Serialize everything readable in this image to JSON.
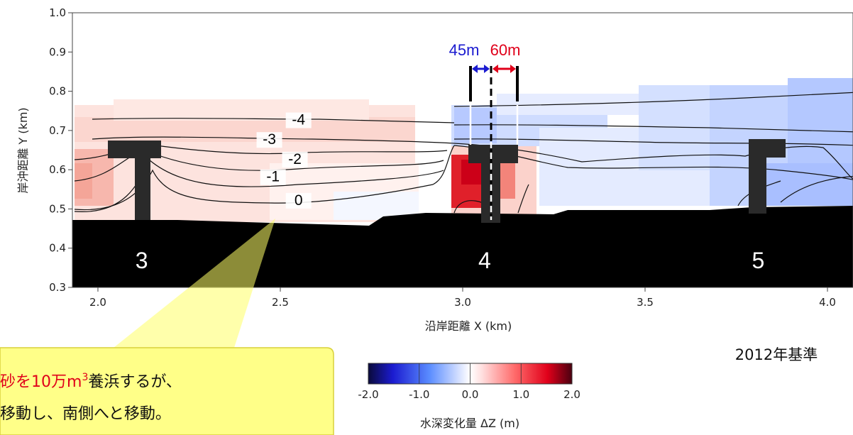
{
  "chart_data": {
    "type": "heatmap",
    "xlabel": "沿岸距離 X (km)",
    "ylabel": "岸沖距離 Y (km)",
    "xlim": [
      1.93,
      4.07
    ],
    "ylim": [
      0.3,
      1.0
    ],
    "x_ticks": [
      "2.0",
      "2.5",
      "3.0",
      "3.5",
      "4.0"
    ],
    "y_ticks": [
      "1.0",
      "0.9",
      "0.8",
      "0.7",
      "0.6",
      "0.5",
      "0.4",
      "0.3"
    ],
    "colorbar": {
      "label": "水深変化量 ΔZ (m)",
      "min": -2.0,
      "max": 2.0,
      "ticks": [
        "-2.0",
        "-1.0",
        "0.0",
        "1.0",
        "2.0"
      ]
    },
    "contours": [
      {
        "label": "0",
        "x": 2.55,
        "y": 0.51
      },
      {
        "label": "-1",
        "x": 2.48,
        "y": 0.57
      },
      {
        "label": "-2",
        "x": 2.54,
        "y": 0.615
      },
      {
        "label": "-3",
        "x": 2.47,
        "y": 0.665
      },
      {
        "label": "-4",
        "x": 2.55,
        "y": 0.715
      }
    ],
    "groins": [
      {
        "label": "3",
        "x": 2.12
      },
      {
        "label": "4",
        "x": 3.06
      },
      {
        "label": "5",
        "x": 3.81
      }
    ],
    "widths": {
      "left": "45m",
      "right": "60m"
    },
    "base_year_note": "2012年基準",
    "callout": {
      "line1_red": "砂を10万m",
      "line1_sup": "3",
      "line1_rest": "養浜するが、",
      "line2": "移動し、南側へと移動。"
    }
  }
}
